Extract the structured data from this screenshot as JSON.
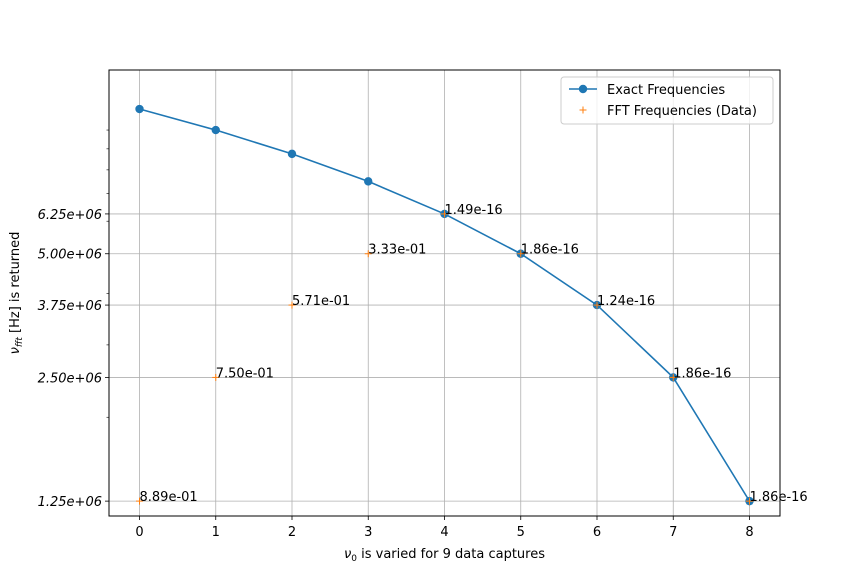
{
  "chart_data": {
    "type": "line",
    "xlabel_prefix": "ν",
    "xlabel_sub": "0",
    "xlabel_rest": " is varied for 9 data captures",
    "ylabel_prefix": "ν",
    "ylabel_sub": "fft",
    "ylabel_rest": " [Hz] is returned",
    "x_ticks": [
      0,
      1,
      2,
      3,
      4,
      5,
      6,
      7,
      8
    ],
    "x_tick_labels": [
      "0",
      "1",
      "2",
      "3",
      "4",
      "5",
      "6",
      "7",
      "8"
    ],
    "y_ticks": [
      1250000,
      2500000,
      3750000,
      5000000,
      6250000
    ],
    "y_tick_labels": [
      "1.25e+06",
      "2.50e+06",
      "3.75e+06",
      "5.00e+06",
      "6.25e+06"
    ],
    "y_scale": "log",
    "xlim": [
      -0.4,
      8.4
    ],
    "ylim": [
      1150000,
      14000000
    ],
    "grid": true,
    "legend_position": "top-right",
    "series": [
      {
        "name": "Exact Frequencies",
        "style": "line-with-circle-markers",
        "color": "#1f77b4",
        "x": [
          0,
          1,
          2,
          3,
          4,
          5,
          6,
          7,
          8
        ],
        "y": [
          11250000,
          10000000,
          8750000,
          7500000,
          6250000,
          5000000,
          3750000,
          2500000,
          1250000
        ]
      },
      {
        "name": "FFT Frequencies (Data)",
        "style": "plus-markers",
        "color": "#ff7f0e",
        "x": [
          0,
          1,
          2,
          3,
          4,
          5,
          6,
          7,
          8
        ],
        "y": [
          1250000,
          2500000,
          3750000,
          5000000,
          6250000,
          5000000,
          3750000,
          2500000,
          1250000
        ]
      }
    ],
    "annotations": [
      {
        "x": 0,
        "y": 1250000,
        "text": "8.89e-01"
      },
      {
        "x": 1,
        "y": 2500000,
        "text": "7.50e-01"
      },
      {
        "x": 2,
        "y": 3750000,
        "text": "5.71e-01"
      },
      {
        "x": 3,
        "y": 5000000,
        "text": "3.33e-01"
      },
      {
        "x": 4,
        "y": 6250000,
        "text": "1.49e-16"
      },
      {
        "x": 5,
        "y": 5000000,
        "text": "1.86e-16"
      },
      {
        "x": 6,
        "y": 3750000,
        "text": "1.24e-16"
      },
      {
        "x": 7,
        "y": 2500000,
        "text": "1.86e-16"
      },
      {
        "x": 8,
        "y": 1250000,
        "text": "1.86e-16"
      }
    ]
  }
}
